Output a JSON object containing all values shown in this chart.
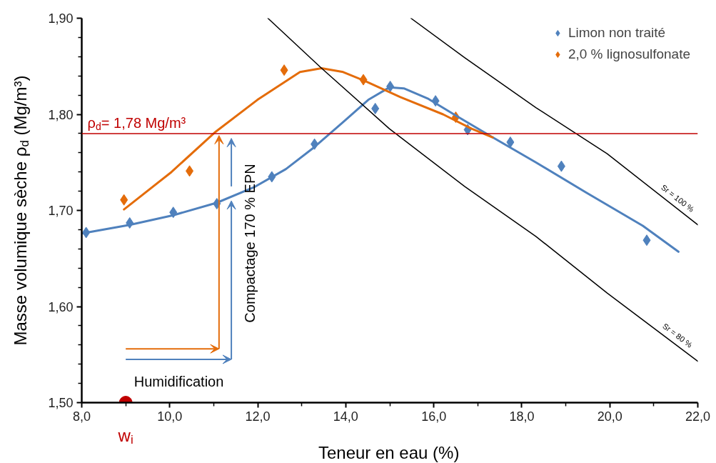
{
  "chart_data": {
    "type": "scatter",
    "xlabel": "Teneur en eau (%)",
    "ylabel": "Masse volumique sèche ρ$_{d}$ (Mg/m³)",
    "xlim": [
      8,
      22
    ],
    "ylim": [
      1.5,
      1.9
    ],
    "xticks": [
      {
        "value": 8,
        "label": "8,0"
      },
      {
        "value": 10,
        "label": "10,0"
      },
      {
        "value": 12,
        "label": "12,0"
      },
      {
        "value": 14,
        "label": "14,0"
      },
      {
        "value": 16,
        "label": "16,0"
      },
      {
        "value": 18,
        "label": "18,0"
      },
      {
        "value": 20,
        "label": "20,0"
      },
      {
        "value": 22,
        "label": "22,0"
      }
    ],
    "yticks": [
      {
        "value": 1.5,
        "label": "1,50"
      },
      {
        "value": 1.6,
        "label": "1,60"
      },
      {
        "value": 1.7,
        "label": "1,70"
      },
      {
        "value": 1.8,
        "label": "1,80"
      },
      {
        "value": 1.9,
        "label": "1,90"
      }
    ],
    "grid": false,
    "legend": "top right",
    "marker": "diamond",
    "series": [
      {
        "name": "Limon non traité",
        "color": "#4f81bd",
        "x": [
          8.1,
          9.09,
          10.08,
          11.07,
          12.32,
          13.29,
          14.67,
          15.01,
          16.04,
          16.77,
          17.74,
          18.9,
          20.84
        ],
        "values": [
          1.677,
          1.687,
          1.698,
          1.707,
          1.735,
          1.769,
          1.806,
          1.829,
          1.814,
          1.784,
          1.771,
          1.746,
          1.669
        ]
      },
      {
        "name": "2,0 % lignosulfonate",
        "color": "#e46c0a",
        "x": [
          8.96,
          10.45,
          12.6,
          14.4,
          16.5
        ],
        "values": [
          1.711,
          1.741,
          1.846,
          1.836,
          1.797
        ]
      },
      {
        "color": "#4f81bd",
        "type": "line",
        "marker": "none",
        "x": [
          8.0,
          9.09,
          10.08,
          11.07,
          11.91,
          12.64,
          13.29,
          13.94,
          14.51,
          14.99,
          15.32,
          15.88,
          16.53,
          17.34,
          18.32,
          19.45,
          20.75,
          21.56
        ],
        "values": [
          1.676,
          1.685,
          1.695,
          1.708,
          1.724,
          1.743,
          1.766,
          1.792,
          1.815,
          1.828,
          1.827,
          1.816,
          1.798,
          1.776,
          1.75,
          1.719,
          1.684,
          1.657
        ]
      },
      {
        "color": "#e46c0a",
        "type": "line",
        "marker": "none",
        "x": [
          8.96,
          10.04,
          11.02,
          11.99,
          12.96,
          13.45,
          13.94,
          14.42,
          15.24,
          16.21,
          16.86,
          17.34
        ],
        "values": [
          1.701,
          1.74,
          1.781,
          1.815,
          1.844,
          1.848,
          1.844,
          1.835,
          1.818,
          1.8,
          1.785,
          1.776
        ]
      },
      {
        "name": "Sr = 100 %",
        "color": "#000000",
        "type": "line",
        "marker": "none",
        "x": [
          15.48,
          16.7,
          18.32,
          19.94,
          22.0
        ],
        "values": [
          1.9,
          1.859,
          1.807,
          1.759,
          1.685
        ]
      },
      {
        "name": "Sr = 80 %",
        "color": "#000000",
        "type": "line",
        "marker": "none",
        "x": [
          12.23,
          13.45,
          14.99,
          16.7,
          18.32,
          19.94,
          22.0
        ],
        "values": [
          1.9,
          1.848,
          1.785,
          1.725,
          1.673,
          1.614,
          1.543
        ]
      },
      {
        "name": "w$_{i}$",
        "color": "#c00000",
        "type": "scatter",
        "marker": "circle",
        "x": [
          9.0
        ],
        "values": [
          1.5
        ]
      }
    ],
    "ref_lines": [
      {
        "axis": "y",
        "value": 1.78,
        "label": "ρ$_{d}$= 1,78 Mg/m³",
        "color": "#c00000"
      }
    ],
    "annotations": [
      {
        "text": "Humidification",
        "x": 11.4,
        "y": 1.71
      },
      "Compactage 170 % EPN"
    ]
  }
}
